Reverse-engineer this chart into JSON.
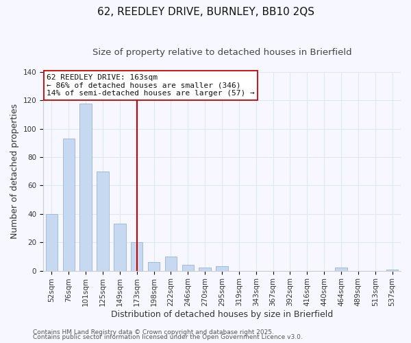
{
  "title": "62, REEDLEY DRIVE, BURNLEY, BB10 2QS",
  "subtitle": "Size of property relative to detached houses in Brierfield",
  "xlabel": "Distribution of detached houses by size in Brierfield",
  "ylabel": "Number of detached properties",
  "bar_labels": [
    "52sqm",
    "76sqm",
    "101sqm",
    "125sqm",
    "149sqm",
    "173sqm",
    "198sqm",
    "222sqm",
    "246sqm",
    "270sqm",
    "295sqm",
    "319sqm",
    "343sqm",
    "367sqm",
    "392sqm",
    "416sqm",
    "440sqm",
    "464sqm",
    "489sqm",
    "513sqm",
    "537sqm"
  ],
  "bar_values": [
    40,
    93,
    118,
    70,
    33,
    20,
    6,
    10,
    4,
    2,
    3,
    0,
    0,
    0,
    0,
    0,
    0,
    2,
    0,
    0,
    1
  ],
  "bar_color": "#c6d9f1",
  "bar_edge_color": "#9ab3d5",
  "ylim": [
    0,
    140
  ],
  "yticks": [
    0,
    20,
    40,
    60,
    80,
    100,
    120,
    140
  ],
  "vline_color": "#cc0000",
  "annotation_title": "62 REEDLEY DRIVE: 163sqm",
  "annotation_line1": "← 86% of detached houses are smaller (346)",
  "annotation_line2": "14% of semi-detached houses are larger (57) →",
  "footer1": "Contains HM Land Registry data © Crown copyright and database right 2025.",
  "footer2": "Contains public sector information licensed under the Open Government Licence v3.0.",
  "background_color": "#f7f7ff",
  "grid_color": "#dde8f5",
  "title_fontsize": 11,
  "subtitle_fontsize": 9.5,
  "axis_label_fontsize": 9,
  "tick_fontsize": 7.5,
  "annotation_fontsize": 8,
  "footer_fontsize": 6.5
}
